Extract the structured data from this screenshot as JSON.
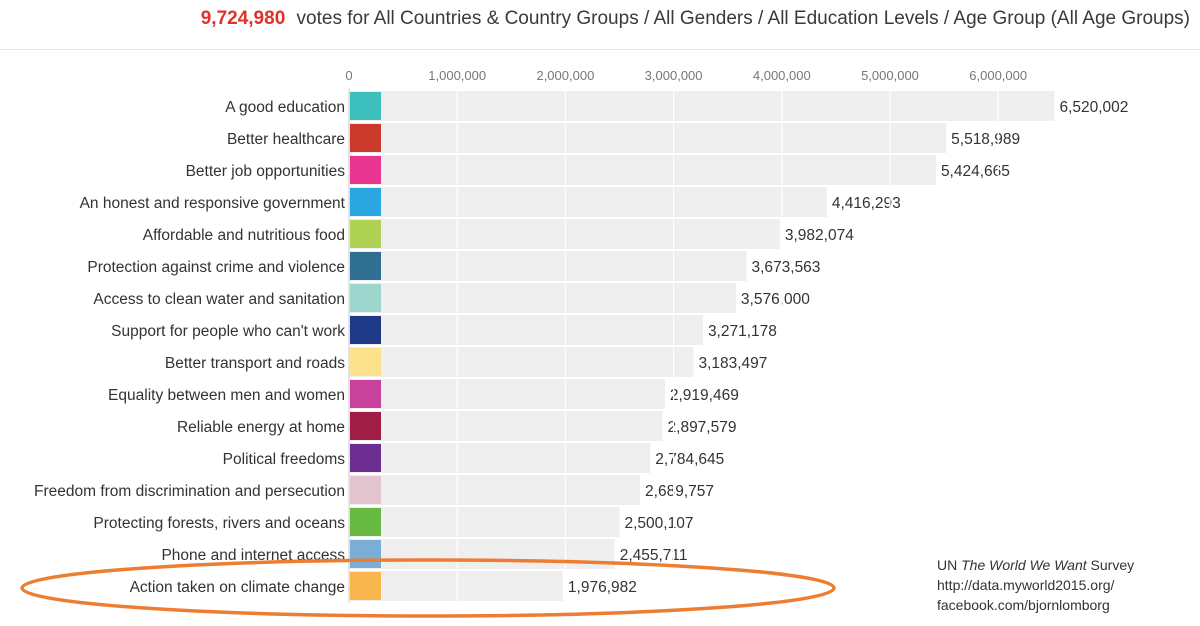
{
  "header": {
    "total_votes": "9,724,980",
    "description": "votes for All Countries & Country Groups / All Genders / All Education Levels / Age Group (All Age Groups)"
  },
  "source": {
    "line1_prefix": "UN",
    "line1_italic": "The World We Want",
    "line1_suffix": "Survey",
    "line2": "http://data.myworld2015.org/",
    "line3": "facebook.com/bjornlomborg"
  },
  "highlight": {
    "category": "Action taken on climate change",
    "color": "#ed7d31"
  },
  "chart_data": {
    "type": "bar",
    "orientation": "horizontal",
    "xlim": [
      0,
      6500000
    ],
    "ticks": [
      0,
      1000000,
      2000000,
      3000000,
      4000000,
      5000000,
      6000000
    ],
    "tick_labels": [
      "0",
      "1,000,000",
      "2,000,000",
      "3,000,000",
      "4,000,000",
      "5,000,000",
      "6,000,000"
    ],
    "grid": true,
    "bar_color": "#efefef",
    "categories": [
      "A good education",
      "Better healthcare",
      "Better job opportunities",
      "An honest and responsive government",
      "Affordable and nutritious food",
      "Protection against crime and violence",
      "Access to clean water and sanitation",
      "Support for people who can't work",
      "Better transport and roads",
      "Equality between men and women",
      "Reliable energy at home",
      "Political freedoms",
      "Freedom from discrimination and persecution",
      "Protecting forests, rivers and oceans",
      "Phone and internet access",
      "Action taken on climate change"
    ],
    "values": [
      6520002,
      5518989,
      5424665,
      4416293,
      3982074,
      3673563,
      3576000,
      3271178,
      3183497,
      2919469,
      2897579,
      2784645,
      2689757,
      2500107,
      2455711,
      1976982
    ],
    "value_labels": [
      "6,520,002",
      "5,518,989",
      "5,424,665",
      "4,416,293",
      "3,982,074",
      "3,673,563",
      "3,576,000",
      "3,271,178",
      "3,183,497",
      "2,919,469",
      "2,897,579",
      "2,784,645",
      "2,689,757",
      "2,500,107",
      "2,455,711",
      "1,976,982"
    ],
    "swatch_colors": [
      "#3cbfbd",
      "#cc3a2e",
      "#e8358f",
      "#2aa7e0",
      "#afd154",
      "#2f6f92",
      "#9dd6cc",
      "#1f3a87",
      "#fde28e",
      "#c8419a",
      "#a01d45",
      "#6c2f91",
      "#e2c4cf",
      "#68b943",
      "#7aaed6",
      "#f9b54e"
    ]
  }
}
